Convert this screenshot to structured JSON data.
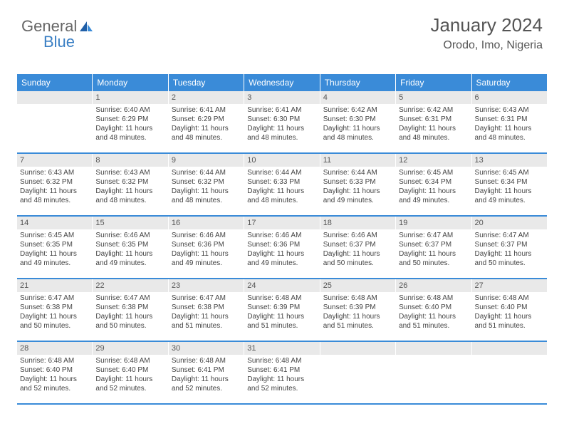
{
  "brand": {
    "part1": "General",
    "part2": "Blue"
  },
  "title": "January 2024",
  "location": "Orodo, Imo, Nigeria",
  "colors": {
    "header_bg": "#3a8bd8",
    "header_text": "#ffffff",
    "daynum_bg": "#e9e9e9",
    "text": "#444444",
    "brand_gray": "#666666",
    "brand_blue": "#3a7fc4",
    "week_border": "#3a8bd8"
  },
  "day_headers": [
    "Sunday",
    "Monday",
    "Tuesday",
    "Wednesday",
    "Thursday",
    "Friday",
    "Saturday"
  ],
  "weeks": [
    [
      null,
      {
        "n": "1",
        "sr": "6:40 AM",
        "ss": "6:29 PM",
        "dl": "11 hours and 48 minutes."
      },
      {
        "n": "2",
        "sr": "6:41 AM",
        "ss": "6:29 PM",
        "dl": "11 hours and 48 minutes."
      },
      {
        "n": "3",
        "sr": "6:41 AM",
        "ss": "6:30 PM",
        "dl": "11 hours and 48 minutes."
      },
      {
        "n": "4",
        "sr": "6:42 AM",
        "ss": "6:30 PM",
        "dl": "11 hours and 48 minutes."
      },
      {
        "n": "5",
        "sr": "6:42 AM",
        "ss": "6:31 PM",
        "dl": "11 hours and 48 minutes."
      },
      {
        "n": "6",
        "sr": "6:43 AM",
        "ss": "6:31 PM",
        "dl": "11 hours and 48 minutes."
      }
    ],
    [
      {
        "n": "7",
        "sr": "6:43 AM",
        "ss": "6:32 PM",
        "dl": "11 hours and 48 minutes."
      },
      {
        "n": "8",
        "sr": "6:43 AM",
        "ss": "6:32 PM",
        "dl": "11 hours and 48 minutes."
      },
      {
        "n": "9",
        "sr": "6:44 AM",
        "ss": "6:32 PM",
        "dl": "11 hours and 48 minutes."
      },
      {
        "n": "10",
        "sr": "6:44 AM",
        "ss": "6:33 PM",
        "dl": "11 hours and 48 minutes."
      },
      {
        "n": "11",
        "sr": "6:44 AM",
        "ss": "6:33 PM",
        "dl": "11 hours and 49 minutes."
      },
      {
        "n": "12",
        "sr": "6:45 AM",
        "ss": "6:34 PM",
        "dl": "11 hours and 49 minutes."
      },
      {
        "n": "13",
        "sr": "6:45 AM",
        "ss": "6:34 PM",
        "dl": "11 hours and 49 minutes."
      }
    ],
    [
      {
        "n": "14",
        "sr": "6:45 AM",
        "ss": "6:35 PM",
        "dl": "11 hours and 49 minutes."
      },
      {
        "n": "15",
        "sr": "6:46 AM",
        "ss": "6:35 PM",
        "dl": "11 hours and 49 minutes."
      },
      {
        "n": "16",
        "sr": "6:46 AM",
        "ss": "6:36 PM",
        "dl": "11 hours and 49 minutes."
      },
      {
        "n": "17",
        "sr": "6:46 AM",
        "ss": "6:36 PM",
        "dl": "11 hours and 49 minutes."
      },
      {
        "n": "18",
        "sr": "6:46 AM",
        "ss": "6:37 PM",
        "dl": "11 hours and 50 minutes."
      },
      {
        "n": "19",
        "sr": "6:47 AM",
        "ss": "6:37 PM",
        "dl": "11 hours and 50 minutes."
      },
      {
        "n": "20",
        "sr": "6:47 AM",
        "ss": "6:37 PM",
        "dl": "11 hours and 50 minutes."
      }
    ],
    [
      {
        "n": "21",
        "sr": "6:47 AM",
        "ss": "6:38 PM",
        "dl": "11 hours and 50 minutes."
      },
      {
        "n": "22",
        "sr": "6:47 AM",
        "ss": "6:38 PM",
        "dl": "11 hours and 50 minutes."
      },
      {
        "n": "23",
        "sr": "6:47 AM",
        "ss": "6:38 PM",
        "dl": "11 hours and 51 minutes."
      },
      {
        "n": "24",
        "sr": "6:48 AM",
        "ss": "6:39 PM",
        "dl": "11 hours and 51 minutes."
      },
      {
        "n": "25",
        "sr": "6:48 AM",
        "ss": "6:39 PM",
        "dl": "11 hours and 51 minutes."
      },
      {
        "n": "26",
        "sr": "6:48 AM",
        "ss": "6:40 PM",
        "dl": "11 hours and 51 minutes."
      },
      {
        "n": "27",
        "sr": "6:48 AM",
        "ss": "6:40 PM",
        "dl": "11 hours and 51 minutes."
      }
    ],
    [
      {
        "n": "28",
        "sr": "6:48 AM",
        "ss": "6:40 PM",
        "dl": "11 hours and 52 minutes."
      },
      {
        "n": "29",
        "sr": "6:48 AM",
        "ss": "6:40 PM",
        "dl": "11 hours and 52 minutes."
      },
      {
        "n": "30",
        "sr": "6:48 AM",
        "ss": "6:41 PM",
        "dl": "11 hours and 52 minutes."
      },
      {
        "n": "31",
        "sr": "6:48 AM",
        "ss": "6:41 PM",
        "dl": "11 hours and 52 minutes."
      },
      null,
      null,
      null
    ]
  ],
  "labels": {
    "sunrise": "Sunrise:",
    "sunset": "Sunset:",
    "daylight": "Daylight:"
  }
}
